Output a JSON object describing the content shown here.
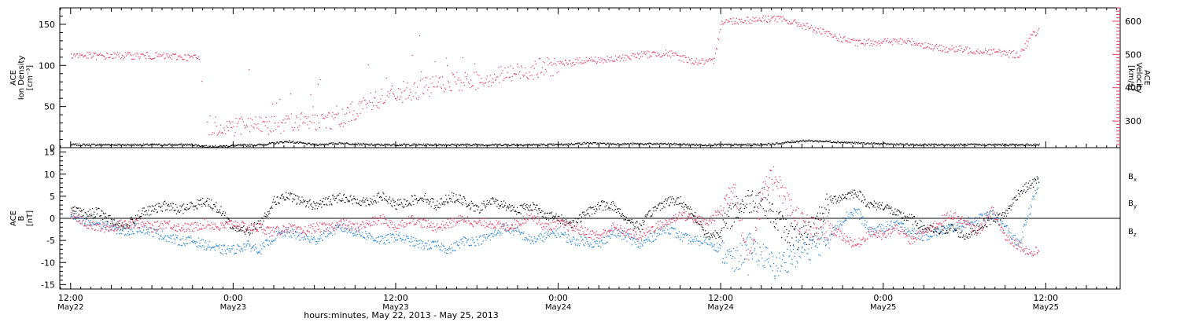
{
  "chart_data": [
    {
      "type": "scatter",
      "panel": "top",
      "ylabel_lines": [
        "ACE",
        "Ion Density",
        "[cm⁻³]"
      ],
      "y2label_lines": [
        "ACE",
        "Velocity",
        "[km/s]"
      ],
      "ylim": [
        0,
        170
      ],
      "y2lim": [
        220,
        640
      ],
      "yticks": [
        0,
        50,
        100,
        150
      ],
      "y2ticks": [
        300,
        400,
        500,
        600
      ],
      "colors": {
        "density": "#000000",
        "velocity": "#e8365f"
      },
      "series": [
        {
          "axis": "left",
          "x_hours": [
            0,
            2,
            4,
            6,
            8,
            9,
            10,
            11,
            12,
            14,
            16,
            18,
            20,
            22,
            24,
            26,
            28,
            30,
            32,
            34,
            36,
            38,
            40,
            42,
            44,
            46,
            48,
            50,
            52,
            54,
            56,
            58,
            60,
            62,
            64,
            66,
            68,
            70,
            71.5
          ],
          "values": [
            4,
            4,
            4,
            4,
            4,
            4,
            2,
            2,
            3,
            4,
            8,
            4,
            6,
            4,
            4,
            4,
            4,
            4,
            4,
            4,
            4,
            6,
            5,
            5,
            5,
            4,
            4,
            4,
            5,
            9,
            8,
            6,
            5,
            4,
            4,
            4,
            4,
            4,
            4
          ]
        },
        {
          "axis": "right",
          "x_hours": [
            0,
            2,
            4,
            6,
            8,
            9,
            9.5,
            10,
            12,
            14,
            16,
            18,
            20,
            22,
            24,
            26,
            28,
            30,
            32,
            34,
            36,
            38,
            40,
            42,
            44,
            46,
            47.5,
            48,
            50,
            52,
            54,
            56,
            58,
            60,
            62,
            64,
            66,
            68,
            70,
            71,
            71.5
          ],
          "values": [
            500,
            496,
            498,
            497,
            494,
            492,
            490,
            290,
            285,
            290,
            295,
            300,
            310,
            360,
            380,
            400,
            415,
            425,
            440,
            455,
            470,
            485,
            485,
            500,
            505,
            480,
            478,
            600,
            605,
            610,
            590,
            560,
            535,
            540,
            540,
            520,
            515,
            510,
            500,
            560,
            575
          ]
        }
      ]
    },
    {
      "type": "scatter",
      "panel": "bottom",
      "ylabel_lines": [
        "ACE",
        "B",
        "[nT]"
      ],
      "ylim": [
        -16,
        16
      ],
      "yticks": [
        -15,
        -10,
        -5,
        0,
        5,
        10,
        15
      ],
      "legend_placement": "right",
      "series": [
        {
          "name": "Bx",
          "color": "#000000",
          "x_hours": [
            0,
            1,
            2,
            3,
            4,
            5,
            6,
            7,
            8,
            9,
            10,
            11,
            12,
            13,
            14,
            15,
            16,
            17,
            18,
            19,
            20,
            21,
            22,
            23,
            24,
            25,
            26,
            27,
            28,
            29,
            30,
            31,
            32,
            33,
            34,
            35,
            36,
            37,
            38,
            39,
            40,
            41,
            42,
            43,
            44,
            45,
            46,
            47,
            48,
            49,
            50,
            51,
            52,
            53,
            54,
            55,
            56,
            57,
            58,
            59,
            60,
            61,
            62,
            63,
            64,
            65,
            66,
            67,
            68,
            69,
            70,
            71,
            71.5
          ],
          "values": [
            2,
            1,
            1.5,
            -0.5,
            -2,
            1,
            2,
            3,
            2,
            3,
            4,
            2,
            -2,
            -3,
            -1,
            4,
            5,
            4,
            3,
            4,
            5,
            4,
            4,
            5,
            3,
            4,
            5,
            3,
            5,
            4,
            2,
            4,
            3,
            2,
            3,
            1,
            0,
            -1,
            1,
            3,
            3,
            0,
            -2,
            2,
            4,
            4,
            1,
            -4,
            -3,
            2,
            4,
            5,
            0,
            -3,
            -5,
            -1,
            4,
            5,
            6,
            3,
            3,
            1,
            0,
            -2,
            -3,
            -2,
            -4,
            -2,
            0,
            1,
            6,
            8,
            9
          ]
        },
        {
          "name": "By",
          "color": "#1f7fd6",
          "x_hours": [
            0,
            1,
            2,
            3,
            4,
            5,
            6,
            7,
            8,
            9,
            10,
            11,
            12,
            13,
            14,
            15,
            16,
            17,
            18,
            19,
            20,
            21,
            22,
            23,
            24,
            25,
            26,
            27,
            28,
            29,
            30,
            31,
            32,
            33,
            34,
            35,
            36,
            37,
            38,
            39,
            40,
            41,
            42,
            43,
            44,
            45,
            46,
            47,
            48,
            49,
            50,
            51,
            52,
            53,
            54,
            55,
            56,
            57,
            58,
            59,
            60,
            61,
            62,
            63,
            64,
            65,
            66,
            67,
            68,
            69,
            70,
            71,
            71.5
          ],
          "values": [
            1,
            -1,
            -1,
            -2,
            -3,
            -2,
            -3,
            -4,
            -5,
            -5,
            -6,
            -7,
            -7,
            -6,
            -7,
            -4,
            -3,
            -4,
            -5,
            -3,
            -2,
            -3,
            -4,
            -5,
            -4,
            -5,
            -6,
            -6,
            -7,
            -5,
            -5,
            -4,
            -2,
            -3,
            -5,
            -4,
            -3,
            -5,
            -5,
            -6,
            -3,
            -4,
            -6,
            -4,
            -2,
            -4,
            -5,
            -5,
            -7,
            -10,
            -6,
            -8,
            -11,
            -9,
            -7,
            -6,
            -4,
            0,
            2,
            -3,
            -2,
            -1,
            -3,
            -4,
            -3,
            -2,
            -1,
            0,
            1,
            -2,
            -6,
            4,
            8
          ]
        },
        {
          "name": "Bz",
          "color": "#e8365f",
          "x_hours": [
            0,
            1,
            2,
            3,
            4,
            5,
            6,
            7,
            8,
            9,
            10,
            11,
            12,
            13,
            14,
            15,
            16,
            17,
            18,
            19,
            20,
            21,
            22,
            23,
            24,
            25,
            26,
            27,
            28,
            29,
            30,
            31,
            32,
            33,
            34,
            35,
            36,
            37,
            38,
            39,
            40,
            41,
            42,
            43,
            44,
            45,
            46,
            47,
            48,
            49,
            50,
            51,
            52,
            53,
            54,
            55,
            56,
            57,
            58,
            59,
            60,
            61,
            62,
            63,
            64,
            65,
            66,
            67,
            68,
            69,
            70,
            71,
            71.5
          ],
          "values": [
            1,
            -1,
            -2,
            -2,
            -1,
            -1,
            -2,
            -1,
            -2,
            -2,
            -1,
            -2,
            -1,
            -2,
            -2,
            -3,
            -2,
            -3,
            -2,
            -2,
            -1,
            -2,
            -1,
            0,
            -2,
            0,
            -1,
            -2,
            -1,
            0,
            -1,
            -1,
            -2,
            -1,
            1,
            -2,
            -1,
            -2,
            -3,
            -4,
            -2,
            -3,
            -4,
            -2,
            -1,
            1,
            0,
            -1,
            2,
            8,
            -10,
            5,
            10,
            3,
            -1,
            -3,
            -2,
            -4,
            -6,
            -3,
            -4,
            -2,
            -5,
            -3,
            -1,
            1,
            -1,
            -3,
            2,
            -4,
            -6,
            -8,
            -7
          ]
        }
      ]
    }
  ],
  "xaxis": {
    "ticks": [
      {
        "hour": 0,
        "time": "12:00",
        "date": "May22"
      },
      {
        "hour": 12,
        "time": "0:00",
        "date": "May23"
      },
      {
        "hour": 24,
        "time": "12:00",
        "date": "May23"
      },
      {
        "hour": 36,
        "time": "0:00",
        "date": "May24"
      },
      {
        "hour": 48,
        "time": "12:00",
        "date": "May24"
      },
      {
        "hour": 60,
        "time": "0:00",
        "date": "May25"
      },
      {
        "hour": 72,
        "time": "12:00",
        "date": "May25"
      }
    ],
    "range_hours": [
      -0.8,
      77.5
    ],
    "label": "hours:minutes, May 22, 2013 - May 25, 2013"
  }
}
